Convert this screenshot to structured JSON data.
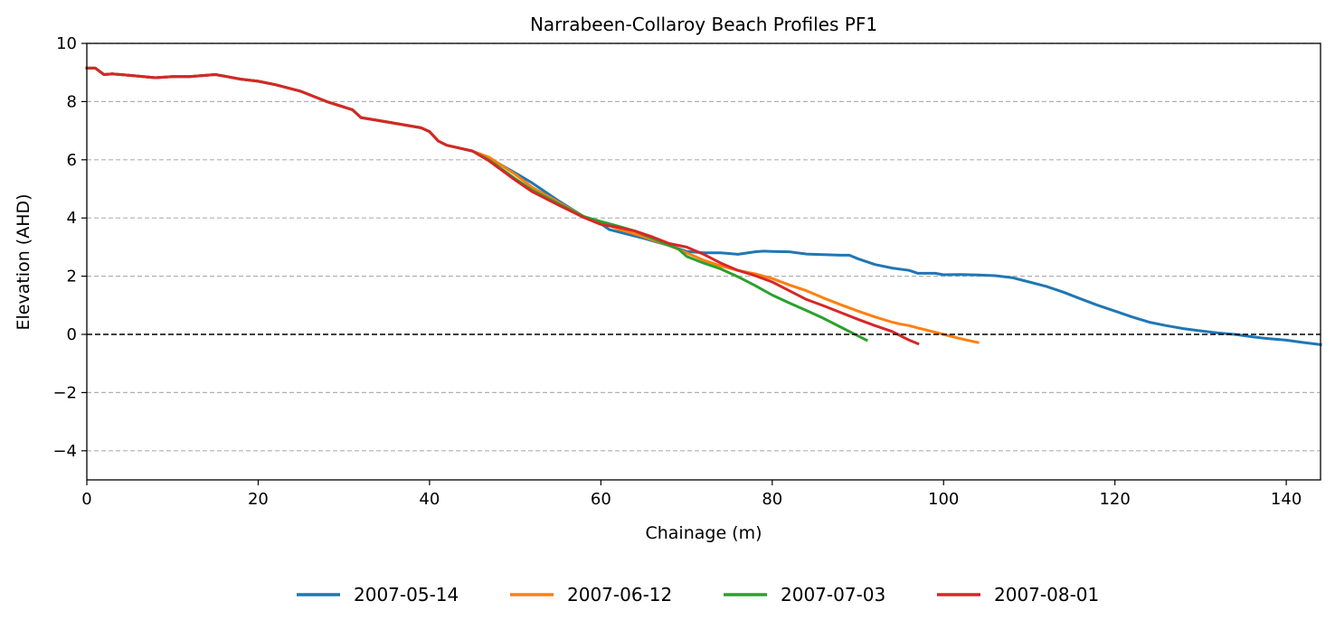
{
  "chart_data": {
    "type": "line",
    "title": "Narrabeen-Collaroy Beach Profiles PF1",
    "xlabel": "Chainage (m)",
    "ylabel": "Elevation (AHD)",
    "xlim": [
      0,
      144
    ],
    "ylim": [
      -5,
      10
    ],
    "x_ticks": [
      0,
      20,
      40,
      60,
      80,
      100,
      120,
      140
    ],
    "y_ticks": [
      -4,
      -2,
      0,
      2,
      4,
      6,
      8,
      10
    ],
    "x_tick_labels": [
      "0",
      "20",
      "40",
      "60",
      "80",
      "100",
      "120",
      "140"
    ],
    "y_tick_labels": [
      "−4",
      "−2",
      "0",
      "2",
      "4",
      "6",
      "8",
      "10"
    ],
    "grid": "y-dashed",
    "reference_line": {
      "y": 0,
      "style": "dashed",
      "color": "#000000"
    },
    "legend_position": "bottom-center",
    "series": [
      {
        "name": "2007-05-14",
        "color": "#1f77b4",
        "x": [
          0,
          1,
          2,
          3,
          5,
          8,
          10,
          12,
          15,
          18,
          20,
          22,
          25,
          28,
          31,
          32,
          35,
          39,
          40,
          41,
          42,
          45,
          47,
          50,
          52,
          55,
          58,
          60,
          61,
          63,
          65,
          68,
          70,
          72,
          74,
          76,
          78,
          79,
          80,
          82,
          84,
          86,
          88,
          89,
          90,
          92,
          94,
          96,
          97,
          98,
          99,
          100,
          102,
          104,
          106,
          108,
          110,
          112,
          114,
          116,
          118,
          120,
          122,
          124,
          126,
          128,
          130,
          132,
          134,
          136,
          138,
          140,
          142,
          144
        ],
        "values": [
          9.15,
          9.15,
          8.93,
          8.95,
          8.9,
          8.82,
          8.86,
          8.86,
          8.93,
          8.77,
          8.7,
          8.58,
          8.35,
          8.0,
          7.72,
          7.45,
          7.3,
          7.1,
          6.97,
          6.65,
          6.5,
          6.3,
          6.05,
          5.55,
          5.2,
          4.6,
          4.05,
          3.8,
          3.6,
          3.45,
          3.3,
          3.05,
          2.85,
          2.8,
          2.8,
          2.75,
          2.84,
          2.86,
          2.85,
          2.84,
          2.76,
          2.74,
          2.72,
          2.72,
          2.6,
          2.4,
          2.28,
          2.2,
          2.1,
          2.1,
          2.1,
          2.05,
          2.06,
          2.04,
          2.02,
          1.95,
          1.8,
          1.65,
          1.45,
          1.22,
          1.0,
          0.8,
          0.6,
          0.42,
          0.3,
          0.2,
          0.12,
          0.05,
          0.0,
          -0.08,
          -0.15,
          -0.2,
          -0.28,
          -0.35
        ]
      },
      {
        "name": "2007-06-12",
        "color": "#ff7f0e",
        "x": [
          0,
          1,
          2,
          3,
          5,
          8,
          10,
          12,
          15,
          18,
          20,
          22,
          25,
          28,
          31,
          32,
          35,
          39,
          40,
          41,
          42,
          45,
          47,
          50,
          52,
          55,
          58,
          60,
          62,
          64,
          66,
          68,
          70,
          72,
          74,
          76,
          78,
          80,
          82,
          84,
          86,
          88,
          90,
          92,
          94,
          95,
          96,
          97,
          98,
          100,
          102,
          104
        ],
        "values": [
          9.15,
          9.15,
          8.93,
          8.95,
          8.9,
          8.82,
          8.86,
          8.86,
          8.93,
          8.77,
          8.7,
          8.58,
          8.35,
          8.0,
          7.72,
          7.45,
          7.3,
          7.1,
          6.97,
          6.65,
          6.5,
          6.3,
          6.08,
          5.5,
          5.05,
          4.55,
          4.05,
          3.85,
          3.62,
          3.45,
          3.25,
          3.05,
          2.8,
          2.55,
          2.35,
          2.2,
          2.08,
          1.92,
          1.7,
          1.5,
          1.25,
          1.02,
          0.8,
          0.6,
          0.42,
          0.35,
          0.3,
          0.22,
          0.15,
          0.0,
          -0.15,
          -0.28
        ]
      },
      {
        "name": "2007-07-03",
        "color": "#2ca02c",
        "x": [
          0,
          1,
          2,
          3,
          5,
          8,
          10,
          12,
          15,
          18,
          20,
          22,
          25,
          28,
          31,
          32,
          35,
          39,
          40,
          41,
          42,
          45,
          47,
          50,
          52,
          55,
          58,
          60,
          62,
          64,
          66,
          68,
          69,
          70,
          72,
          74,
          76,
          78,
          80,
          82,
          84,
          86,
          88,
          90,
          91
        ],
        "values": [
          9.15,
          9.15,
          8.93,
          8.95,
          8.9,
          8.82,
          8.86,
          8.86,
          8.93,
          8.77,
          8.7,
          8.58,
          8.35,
          8.0,
          7.72,
          7.45,
          7.3,
          7.1,
          6.97,
          6.65,
          6.5,
          6.3,
          5.98,
          5.35,
          4.95,
          4.5,
          4.05,
          3.88,
          3.72,
          3.55,
          3.3,
          3.05,
          2.95,
          2.68,
          2.45,
          2.25,
          1.98,
          1.68,
          1.35,
          1.08,
          0.82,
          0.55,
          0.25,
          -0.05,
          -0.2
        ]
      },
      {
        "name": "2007-08-01",
        "color": "#d62728",
        "x": [
          0,
          1,
          2,
          3,
          5,
          8,
          10,
          12,
          15,
          18,
          20,
          22,
          25,
          28,
          31,
          32,
          35,
          39,
          40,
          41,
          42,
          45,
          47,
          50,
          52,
          55,
          58,
          60,
          62,
          64,
          66,
          68,
          70,
          72,
          74,
          76,
          78,
          80,
          82,
          84,
          86,
          88,
          90,
          92,
          94,
          95,
          96,
          97
        ],
        "values": [
          9.15,
          9.15,
          8.93,
          8.95,
          8.9,
          8.82,
          8.86,
          8.86,
          8.93,
          8.77,
          8.7,
          8.58,
          8.35,
          8.0,
          7.72,
          7.45,
          7.3,
          7.1,
          6.97,
          6.65,
          6.5,
          6.3,
          5.95,
          5.3,
          4.9,
          4.45,
          4.02,
          3.78,
          3.68,
          3.55,
          3.35,
          3.12,
          3.0,
          2.75,
          2.45,
          2.2,
          2.02,
          1.8,
          1.5,
          1.2,
          0.98,
          0.75,
          0.52,
          0.3,
          0.1,
          -0.05,
          -0.2,
          -0.32
        ]
      }
    ]
  }
}
